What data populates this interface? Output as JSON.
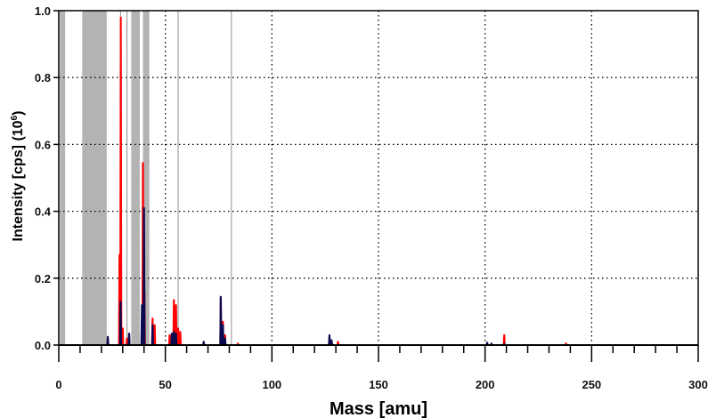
{
  "chart_data": {
    "type": "line",
    "title": "",
    "xlabel": "Mass [amu]",
    "ylabel_main": "Intensity [cps] (10",
    "ylabel_exp": "6",
    "ylabel_close": ")",
    "xlim": [
      0,
      300
    ],
    "ylim": [
      0,
      1.0
    ],
    "xticks": [
      0,
      50,
      100,
      150,
      200,
      250,
      300
    ],
    "xtick_labels": [
      "0",
      "50",
      "100",
      "150",
      "200",
      "250",
      "300"
    ],
    "yticks": [
      0,
      0.2,
      0.4,
      0.6,
      0.8,
      1.0
    ],
    "ytick_labels": [
      "0.0",
      "0.2",
      "0.4",
      "0.6",
      "0.8",
      "1.0"
    ],
    "grid": true,
    "colors": {
      "red_series": "#ff0000",
      "navy_series": "#0a0a50",
      "shade": "#b3b3b3",
      "marker": "#909090"
    },
    "shaded_regions": [
      [
        0.5,
        3
      ],
      [
        11,
        22.5
      ],
      [
        34,
        38
      ],
      [
        39.5,
        42.5
      ]
    ],
    "marker_lines": [
      29,
      32,
      56,
      81
    ],
    "series": [
      {
        "color": "#ff0000",
        "peaks": [
          [
            23,
            0.02
          ],
          [
            28.5,
            0.27
          ],
          [
            29.1,
            0.98
          ],
          [
            30,
            0.05
          ],
          [
            32,
            0.02
          ],
          [
            33,
            0.03
          ],
          [
            39.5,
            0.545
          ],
          [
            40.2,
            0.16
          ],
          [
            44,
            0.08
          ],
          [
            45,
            0.06
          ],
          [
            52,
            0.03
          ],
          [
            54,
            0.135
          ],
          [
            55,
            0.12
          ],
          [
            56,
            0.05
          ],
          [
            57,
            0.04
          ],
          [
            68,
            0.01
          ],
          [
            76,
            0.14
          ],
          [
            77,
            0.07
          ],
          [
            78,
            0.03
          ],
          [
            84,
            0.005
          ],
          [
            127,
            0.025
          ],
          [
            128,
            0.01
          ],
          [
            131,
            0.01
          ],
          [
            209,
            0.03
          ],
          [
            238,
            0.005
          ]
        ]
      },
      {
        "color": "#0a0a50",
        "peaks": [
          [
            23,
            0.025
          ],
          [
            29,
            0.13
          ],
          [
            33,
            0.035
          ],
          [
            39,
            0.12
          ],
          [
            40,
            0.41
          ],
          [
            44,
            0.06
          ],
          [
            53,
            0.035
          ],
          [
            54,
            0.04
          ],
          [
            55,
            0.035
          ],
          [
            68,
            0.01
          ],
          [
            76,
            0.145
          ],
          [
            77,
            0.06
          ],
          [
            78,
            0.02
          ],
          [
            127,
            0.03
          ],
          [
            128,
            0.015
          ],
          [
            201,
            0.008
          ],
          [
            203,
            0.005
          ],
          [
            209,
            0.004
          ]
        ]
      }
    ]
  }
}
